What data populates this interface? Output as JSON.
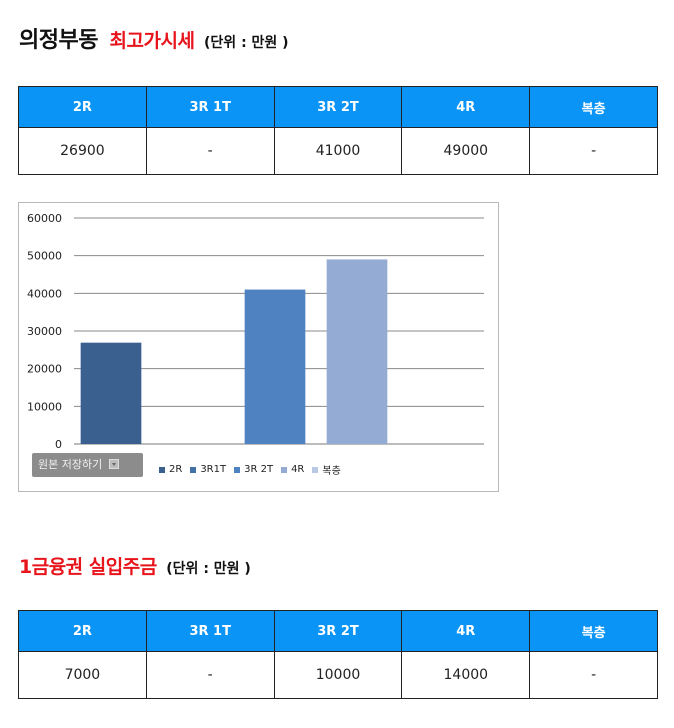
{
  "section1": {
    "title": "의정부동",
    "subtitle": "최고가시세",
    "unit": "(단위 : 만원 )",
    "headers": [
      "2R",
      "3R 1T",
      "3R 2T",
      "4R",
      "복층"
    ],
    "values": [
      "26900",
      "-",
      "41000",
      "49000",
      "-"
    ]
  },
  "chart": {
    "save_button_label": "원본 저장하기",
    "colors": [
      "#3a6090",
      "#4470a8",
      "#4f82c0",
      "#94acd4",
      "#b7c8e3"
    ]
  },
  "chart_data": {
    "type": "bar",
    "categories": [
      "2R",
      "3R1T",
      "3R 2T",
      "4R",
      "복층"
    ],
    "values": [
      26900,
      0,
      41000,
      49000,
      0
    ],
    "legend": [
      "2R",
      "3R1T",
      "3R 2T",
      "4R",
      "복층"
    ],
    "legend_position": "bottom",
    "yticks": [
      "0",
      "10000",
      "20000",
      "30000",
      "40000",
      "50000",
      "60000"
    ],
    "ylim": [
      0,
      60000
    ],
    "grid": true,
    "title": "",
    "xlabel": "",
    "ylabel": ""
  },
  "section2": {
    "title": "1금융권 실입주금",
    "unit": "(단위 : 만원 )",
    "headers": [
      "2R",
      "3R 1T",
      "3R 2T",
      "4R",
      "복층"
    ],
    "values": [
      "7000",
      "-",
      "10000",
      "14000",
      "-"
    ]
  }
}
